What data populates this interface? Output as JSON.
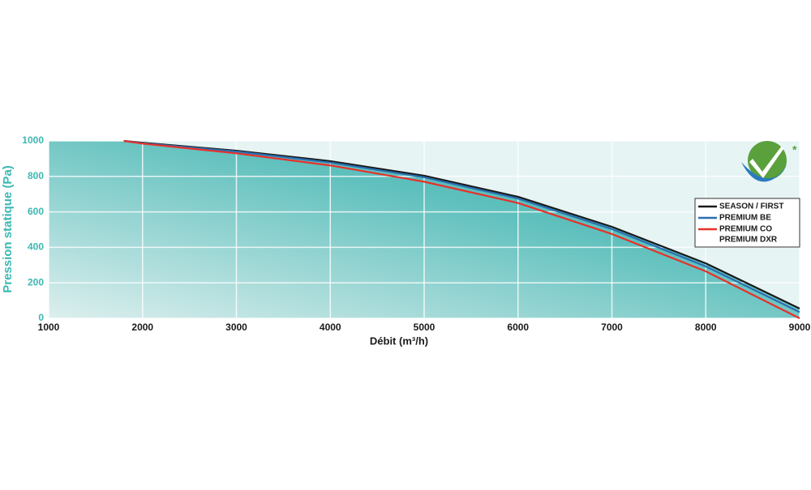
{
  "chart_data": {
    "type": "line",
    "x_label": "Débit (m³/h)",
    "y_label": "Pression statique (Pa)",
    "x": [
      1800,
      2000,
      3000,
      4000,
      5000,
      6000,
      7000,
      8000,
      9000
    ],
    "series": [
      {
        "name": [
          "SEASON / FIRST"
        ],
        "color": "#1a1a1a",
        "values": [
          1000,
          990,
          945,
          886,
          804,
          685,
          516,
          310,
          55
        ]
      },
      {
        "name": [
          "PREMIUM BE"
        ],
        "color": "#2b6fb0",
        "values": [
          1000,
          987,
          940,
          878,
          795,
          675,
          503,
          293,
          35
        ]
      },
      {
        "name": [
          "PREMIUM CO",
          "PREMIUM DXR"
        ],
        "color": "#e8302a",
        "values": [
          1000,
          985,
          930,
          862,
          770,
          650,
          475,
          265,
          0
        ]
      }
    ],
    "xlim": [
      1000,
      9000
    ],
    "xticks": [
      1000,
      2000,
      3000,
      4000,
      5000,
      6000,
      7000,
      8000,
      9000
    ],
    "ylim": [
      0,
      1000
    ],
    "yticks": [
      0,
      200,
      400,
      600,
      800,
      1000
    ],
    "grid": true,
    "legend": "right",
    "logo_mark": "*"
  }
}
